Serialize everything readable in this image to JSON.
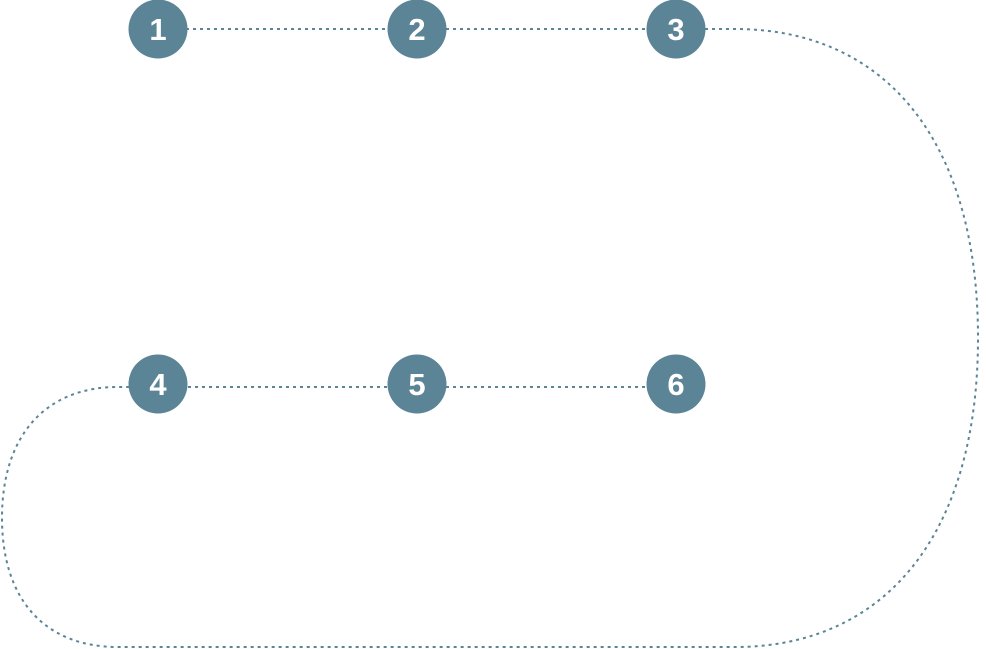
{
  "colors": {
    "node_fill": "#5b8496",
    "connector_stroke": "#5b8496",
    "label_text": "#ffffff",
    "background": "#ffffff"
  },
  "steps": [
    {
      "label": "1"
    },
    {
      "label": "2"
    },
    {
      "label": "3"
    },
    {
      "label": "4"
    },
    {
      "label": "5"
    },
    {
      "label": "6"
    }
  ],
  "connections": [
    {
      "from": "1",
      "to": "2"
    },
    {
      "from": "2",
      "to": "3"
    },
    {
      "from": "3",
      "to": "4"
    },
    {
      "from": "4",
      "to": "5"
    },
    {
      "from": "5",
      "to": "6"
    }
  ]
}
